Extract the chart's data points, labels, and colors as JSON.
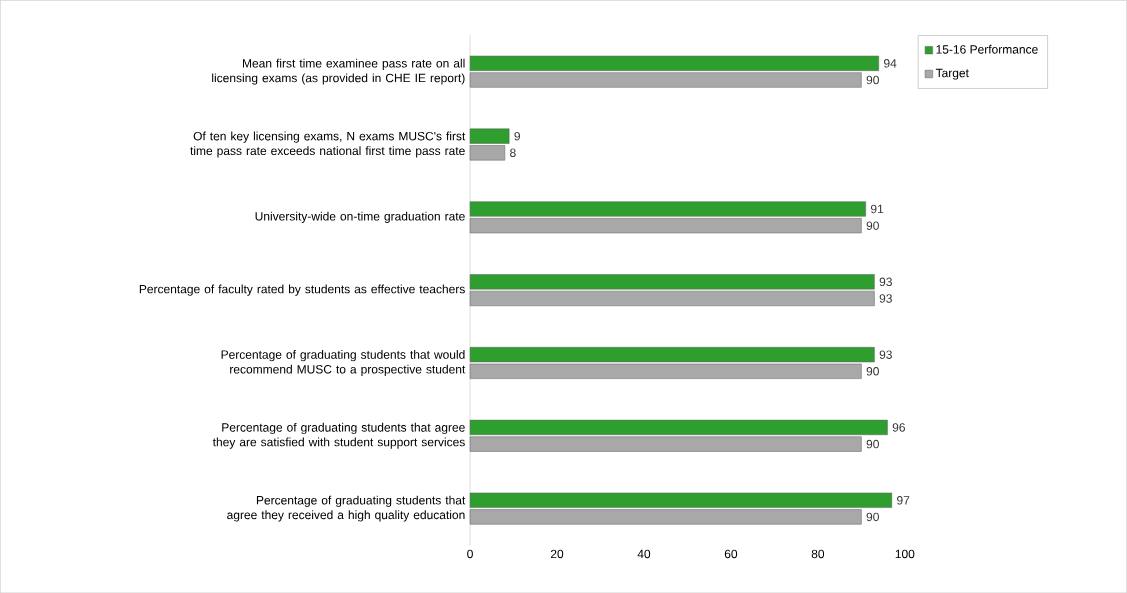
{
  "chart_data": {
    "type": "bar",
    "orientation": "horizontal",
    "categories": [
      "Mean first time examinee pass rate on all licensing exams (as provided in CHE IE report)",
      "Of ten key licensing exams, N exams MUSC's first time pass rate exceeds national first time pass rate",
      "University-wide on-time graduation rate",
      "Percentage of faculty rated by students as effective teachers",
      "Percentage of graduating students that would recommend MUSC to a prospective student",
      "Percentage of graduating students that agree they are satisfied with student support services",
      "Percentage of graduating students that agree they received a high quality education"
    ],
    "series": [
      {
        "name": "15-16 Performance",
        "color": "#2e9e2e",
        "values": [
          94,
          9,
          91,
          93,
          93,
          96,
          97
        ]
      },
      {
        "name": "Target",
        "color": "#a8a8a8",
        "values": [
          90,
          8,
          90,
          93,
          90,
          90,
          90
        ]
      }
    ],
    "xlim": [
      0,
      100
    ],
    "xticks": [
      0,
      20,
      40,
      60,
      80,
      100
    ],
    "data_labels": true,
    "legend": "top right",
    "grid": false
  }
}
